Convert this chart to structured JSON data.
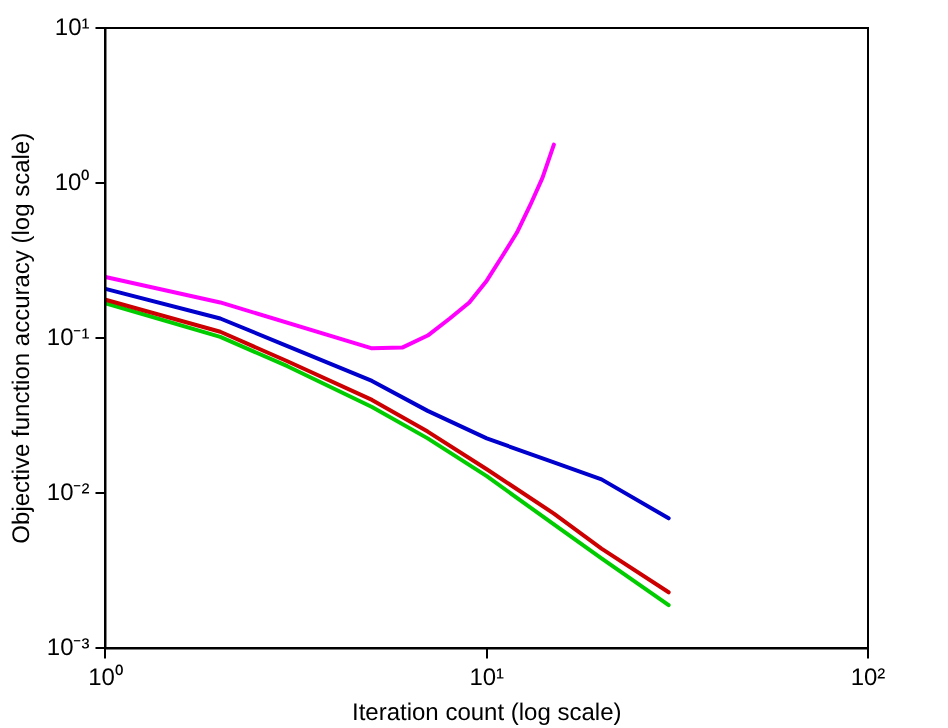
{
  "chart_data": {
    "type": "line",
    "xlabel": "Iteration count (log scale)",
    "ylabel": "Objective function accuracy (log scale)",
    "log": "xy",
    "grid": false,
    "legend": false,
    "marker": "none",
    "line_style": "solid",
    "xlim": [
      1,
      100
    ],
    "xticks": [
      {
        "value": 1,
        "label": "10⁰"
      },
      {
        "value": 10,
        "label": "10¹"
      },
      {
        "value": 100,
        "label": "10²"
      }
    ],
    "ylim": [
      0.001,
      10
    ],
    "yticks": [
      {
        "value": 0.001,
        "label": "10⁻³"
      },
      {
        "value": 0.01,
        "label": "10⁻²"
      },
      {
        "value": 0.1,
        "label": "10⁻¹"
      },
      {
        "value": 1,
        "label": "10⁰"
      },
      {
        "value": 10,
        "label": "10¹"
      }
    ],
    "series": [
      {
        "color": "#ff00ff",
        "x": [
          1,
          2,
          5,
          6,
          7,
          8,
          9,
          10,
          11,
          12,
          13,
          14,
          15
        ],
        "values": [
          0.248,
          0.17,
          0.086,
          0.087,
          0.104,
          0.134,
          0.17,
          0.235,
          0.34,
          0.48,
          0.72,
          1.08,
          1.77
        ]
      },
      {
        "color": "#0000cc",
        "x": [
          1,
          2,
          3,
          5,
          7,
          10,
          15,
          20,
          30
        ],
        "values": [
          0.208,
          0.134,
          0.089,
          0.053,
          0.034,
          0.0226,
          0.0158,
          0.0123,
          0.0069
        ]
      },
      {
        "color": "#cc0000",
        "x": [
          1,
          2,
          3,
          5,
          7,
          10,
          15,
          20,
          30
        ],
        "values": [
          0.177,
          0.11,
          0.071,
          0.04,
          0.025,
          0.0143,
          0.0074,
          0.0044,
          0.0023
        ]
      },
      {
        "color": "#00cc00",
        "x": [
          1,
          2,
          3,
          5,
          7,
          10,
          15,
          20,
          30
        ],
        "values": [
          0.168,
          0.102,
          0.066,
          0.036,
          0.0226,
          0.0129,
          0.0063,
          0.0038,
          0.0019
        ]
      }
    ]
  }
}
